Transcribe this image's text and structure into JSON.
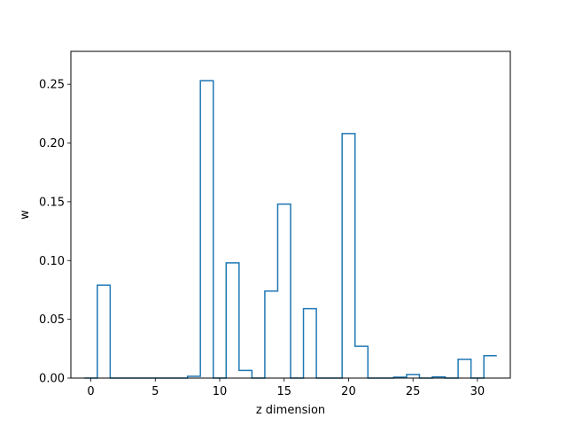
{
  "chart_data": {
    "type": "line",
    "style": "step",
    "xlabel": "z dimension",
    "ylabel": "w",
    "xlim": [
      -1.55,
      32.55
    ],
    "ylim": [
      0,
      0.278
    ],
    "xticks": [
      0,
      5,
      10,
      15,
      20,
      25,
      30
    ],
    "xtick_labels": [
      "0",
      "5",
      "10",
      "15",
      "20",
      "25",
      "30"
    ],
    "yticks": [
      0,
      0.05,
      0.1,
      0.15,
      0.2,
      0.25
    ],
    "ytick_labels": [
      "0.00",
      "0.05",
      "0.10",
      "0.15",
      "0.20",
      "0.25"
    ],
    "grid": false,
    "line_color": "#1f77b4",
    "series": [
      {
        "x": [
          0,
          1,
          2,
          3,
          4,
          5,
          6,
          7,
          8,
          9,
          10,
          11,
          12,
          13,
          14,
          15,
          16,
          17,
          18,
          19,
          20,
          21,
          22,
          23,
          24,
          25,
          26,
          27,
          28,
          29,
          30,
          31
        ],
        "values": [
          0.0,
          0.079,
          0.0,
          0.0,
          0.0,
          0.0,
          0.0,
          0.0,
          0.0015,
          0.253,
          0.0,
          0.098,
          0.0065,
          0.0,
          0.074,
          0.148,
          0.0,
          0.059,
          0.0,
          0.0,
          0.208,
          0.027,
          0.0,
          0.0,
          0.0008,
          0.003,
          0.0,
          0.001,
          0.0,
          0.016,
          0.0,
          0.019
        ]
      }
    ]
  }
}
